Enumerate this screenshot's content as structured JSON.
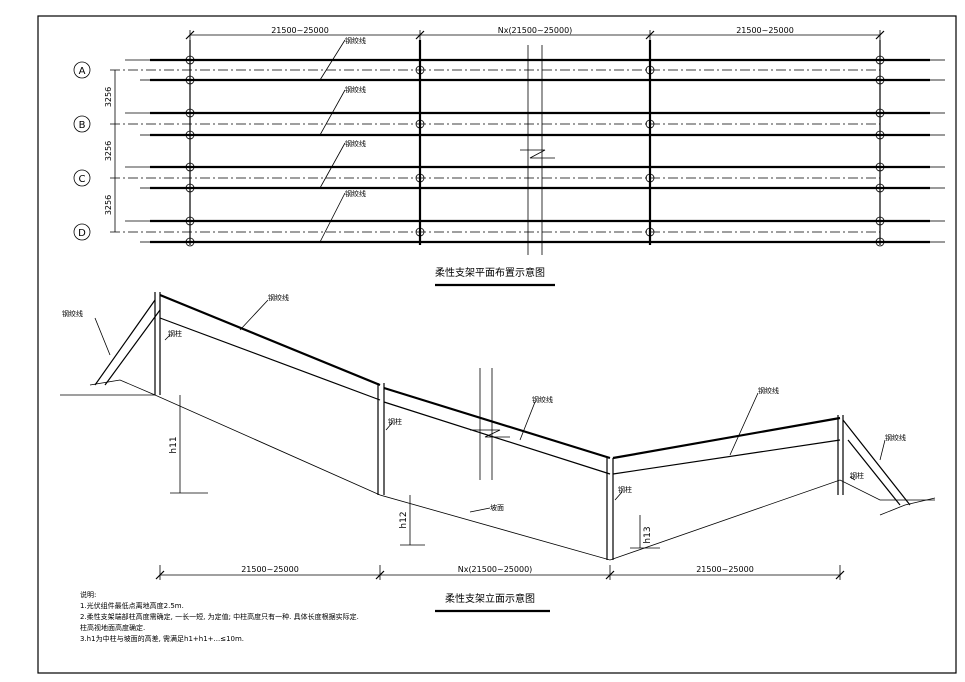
{
  "plan": {
    "title": "柔性支架平面布置示意图",
    "dim_left": "21500~25000",
    "dim_mid": "Nx(21500~25000)",
    "dim_right": "21500~25000",
    "spacing_label": "3256",
    "axes": [
      "A",
      "B",
      "C",
      "D"
    ],
    "cable_label": "钢绞线"
  },
  "elevation": {
    "title": "柔性支架立面示意图",
    "dim_left": "21500~25000",
    "dim_mid": "Nx(21500~25000)",
    "dim_right": "21500~25000",
    "cable_label": "钢绞线",
    "column_label": "钢柱",
    "ground_label": "坡面",
    "h1": "h11",
    "h2": "h12",
    "h3": "h13"
  },
  "notes": {
    "heading": "说明:",
    "line1": "1.光伏组件最低点离地高度2.5m.",
    "line2": "2.柔性支架端部柱高度需确定, 一长一短, 为定值; 中柱高度只有一种. 具体长度根据实际定.",
    "line3": "柱高视地面高度确定.",
    "line4": "3.h1为中柱与坡面的高差, 需满足h1+h1+...≤10m."
  }
}
